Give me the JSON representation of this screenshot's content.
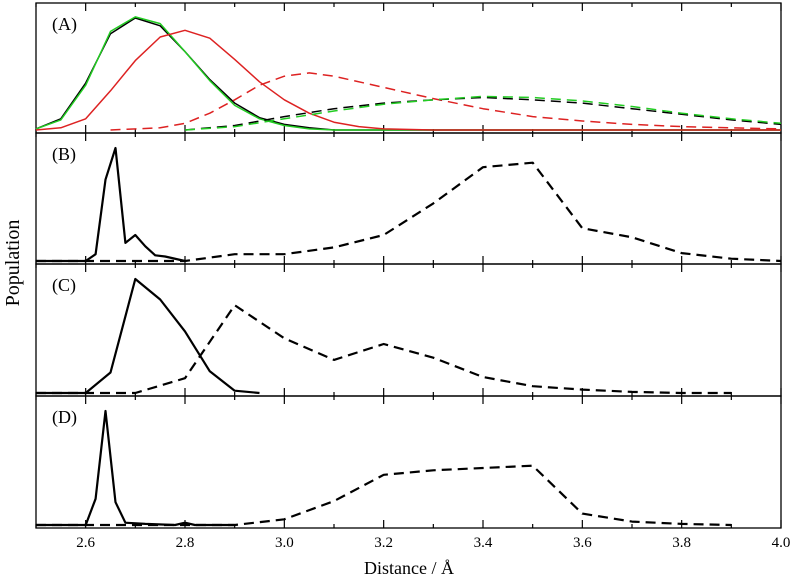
{
  "figure": {
    "xlabel": "Distance / Å",
    "ylabel": "Population"
  },
  "chart_data": [
    {
      "type": "line",
      "panel_label": "(A)",
      "xlim": [
        2.5,
        4.0
      ],
      "ylim": [
        0,
        1.0
      ],
      "series": [
        {
          "color": "#000000",
          "dash": "solid",
          "x": [
            2.5,
            2.55,
            2.6,
            2.65,
            2.7,
            2.75,
            2.8,
            2.85,
            2.9,
            2.95,
            3.0,
            3.05,
            3.1,
            4.0
          ],
          "y": [
            0.01,
            0.1,
            0.42,
            0.86,
            1.0,
            0.93,
            0.7,
            0.45,
            0.24,
            0.11,
            0.05,
            0.02,
            0.0,
            0.0
          ]
        },
        {
          "color": "#22cc22",
          "dash": "solid",
          "x": [
            2.5,
            2.55,
            2.6,
            2.65,
            2.7,
            2.75,
            2.8,
            2.85,
            2.9,
            2.95,
            3.0,
            3.05,
            3.1,
            4.0
          ],
          "y": [
            0.01,
            0.09,
            0.4,
            0.88,
            1.01,
            0.95,
            0.7,
            0.44,
            0.22,
            0.1,
            0.04,
            0.01,
            0.0,
            0.0
          ]
        },
        {
          "color": "#dd2222",
          "dash": "solid",
          "x": [
            2.5,
            2.55,
            2.6,
            2.65,
            2.7,
            2.75,
            2.8,
            2.85,
            2.9,
            2.95,
            3.0,
            3.05,
            3.1,
            3.15,
            3.2,
            3.3,
            4.0
          ],
          "y": [
            0.0,
            0.02,
            0.1,
            0.35,
            0.62,
            0.83,
            0.89,
            0.82,
            0.63,
            0.43,
            0.27,
            0.15,
            0.07,
            0.03,
            0.01,
            0.0,
            0.0
          ]
        },
        {
          "color": "#dd2222",
          "dash": "dashed",
          "x": [
            2.65,
            2.75,
            2.8,
            2.85,
            2.9,
            2.95,
            3.0,
            3.05,
            3.1,
            3.2,
            3.3,
            3.4,
            3.5,
            3.6,
            3.7,
            3.8,
            3.9,
            4.0
          ],
          "y": [
            0.0,
            0.02,
            0.06,
            0.15,
            0.27,
            0.4,
            0.48,
            0.51,
            0.48,
            0.38,
            0.28,
            0.19,
            0.12,
            0.08,
            0.05,
            0.03,
            0.02,
            0.01
          ]
        },
        {
          "color": "#000000",
          "dash": "dashed",
          "x": [
            2.8,
            2.9,
            3.0,
            3.1,
            3.2,
            3.3,
            3.4,
            3.5,
            3.6,
            3.7,
            3.8,
            3.9,
            4.0
          ],
          "y": [
            0.0,
            0.04,
            0.12,
            0.19,
            0.24,
            0.27,
            0.29,
            0.27,
            0.24,
            0.19,
            0.14,
            0.09,
            0.05
          ]
        },
        {
          "color": "#22cc22",
          "dash": "dashed",
          "x": [
            2.8,
            2.9,
            3.0,
            3.1,
            3.2,
            3.3,
            3.4,
            3.5,
            3.6,
            3.7,
            3.8,
            3.9,
            4.0
          ],
          "y": [
            0.0,
            0.03,
            0.1,
            0.17,
            0.23,
            0.27,
            0.3,
            0.29,
            0.26,
            0.21,
            0.15,
            0.1,
            0.06
          ]
        }
      ]
    },
    {
      "type": "line",
      "panel_label": "(B)",
      "xlim": [
        2.5,
        4.0
      ],
      "ylim": [
        0,
        1.0
      ],
      "series": [
        {
          "color": "#000000",
          "dash": "solid",
          "x": [
            2.5,
            2.6,
            2.62,
            2.64,
            2.66,
            2.68,
            2.7,
            2.72,
            2.74,
            2.76,
            2.8
          ],
          "y": [
            0.0,
            0.0,
            0.06,
            0.72,
            1.0,
            0.16,
            0.23,
            0.13,
            0.05,
            0.04,
            0.0
          ]
        },
        {
          "color": "#000000",
          "dash": "dashed",
          "x": [
            2.5,
            2.8,
            2.9,
            3.0,
            3.1,
            3.2,
            3.3,
            3.4,
            3.5,
            3.6,
            3.7,
            3.8,
            3.9,
            4.0
          ],
          "y": [
            0.0,
            0.0,
            0.06,
            0.06,
            0.12,
            0.23,
            0.51,
            0.83,
            0.87,
            0.29,
            0.21,
            0.07,
            0.02,
            0.0
          ]
        }
      ]
    },
    {
      "type": "line",
      "panel_label": "(C)",
      "xlim": [
        2.5,
        4.0
      ],
      "ylim": [
        0,
        1.0
      ],
      "series": [
        {
          "color": "#000000",
          "dash": "solid",
          "x": [
            2.5,
            2.6,
            2.65,
            2.7,
            2.75,
            2.8,
            2.85,
            2.9,
            2.95
          ],
          "y": [
            0.0,
            0.0,
            0.18,
            1.0,
            0.82,
            0.54,
            0.19,
            0.02,
            0.0
          ]
        },
        {
          "color": "#000000",
          "dash": "dashed",
          "x": [
            2.5,
            2.7,
            2.8,
            2.9,
            3.0,
            3.1,
            3.2,
            3.3,
            3.4,
            3.5,
            3.6,
            3.7,
            3.8,
            3.9
          ],
          "y": [
            0.0,
            0.0,
            0.13,
            0.77,
            0.48,
            0.29,
            0.43,
            0.31,
            0.14,
            0.06,
            0.03,
            0.01,
            0.0,
            0.0
          ]
        }
      ]
    },
    {
      "type": "line",
      "panel_label": "(D)",
      "xlim": [
        2.5,
        4.0
      ],
      "ylim": [
        0,
        1.0
      ],
      "series": [
        {
          "color": "#000000",
          "dash": "solid",
          "x": [
            2.5,
            2.6,
            2.62,
            2.64,
            2.66,
            2.68,
            2.72,
            2.78,
            2.8,
            2.82,
            2.9
          ],
          "y": [
            0.0,
            0.0,
            0.23,
            1.0,
            0.2,
            0.02,
            0.01,
            0.0,
            0.02,
            0.0,
            0.0
          ]
        },
        {
          "color": "#000000",
          "dash": "dashed",
          "x": [
            2.5,
            2.9,
            3.0,
            3.1,
            3.2,
            3.3,
            3.4,
            3.5,
            3.6,
            3.7,
            3.8,
            3.9
          ],
          "y": [
            0.0,
            0.0,
            0.05,
            0.21,
            0.44,
            0.48,
            0.5,
            0.52,
            0.1,
            0.03,
            0.01,
            0.0
          ]
        }
      ]
    }
  ],
  "xticks": [
    "2.6",
    "2.8",
    "3.0",
    "3.2",
    "3.4",
    "3.6",
    "3.8",
    "4.0"
  ]
}
